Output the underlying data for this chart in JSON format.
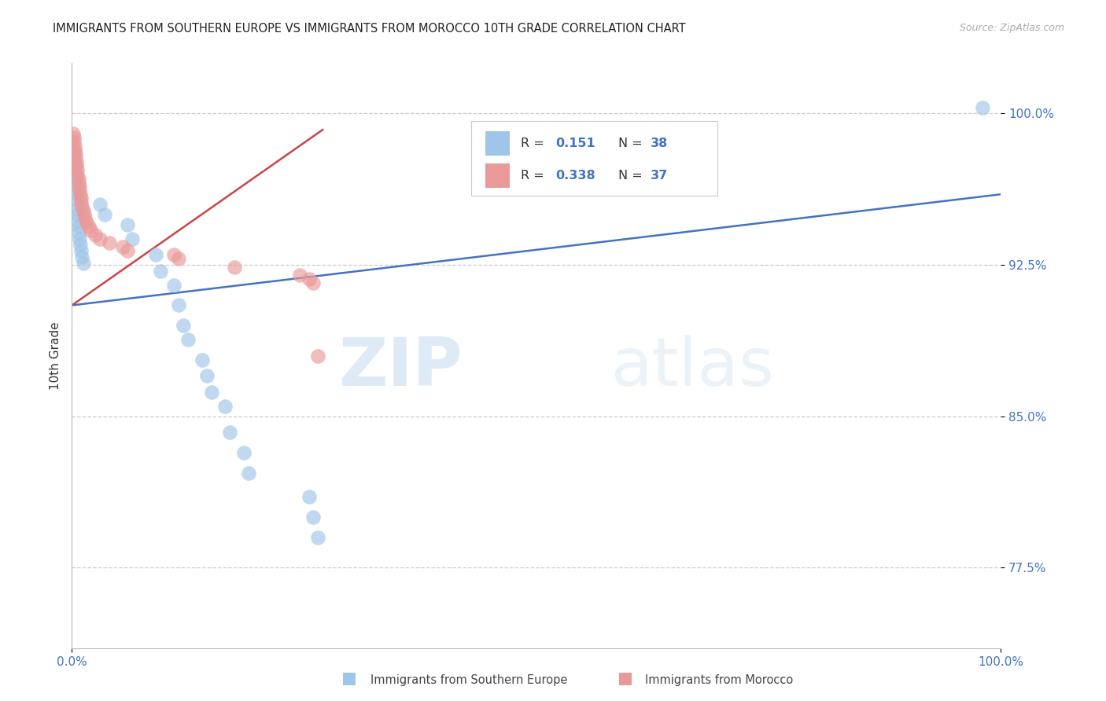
{
  "title": "IMMIGRANTS FROM SOUTHERN EUROPE VS IMMIGRANTS FROM MOROCCO 10TH GRADE CORRELATION CHART",
  "source": "Source: ZipAtlas.com",
  "ylabel": "10th Grade",
  "watermark_zip": "ZIP",
  "watermark_atlas": "atlas",
  "y_ticks": [
    0.775,
    0.85,
    0.925,
    1.0
  ],
  "y_tick_labels": [
    "77.5%",
    "85.0%",
    "92.5%",
    "100.0%"
  ],
  "x_lim": [
    0.0,
    1.0
  ],
  "y_lim": [
    0.735,
    1.025
  ],
  "legend_r1": "0.151",
  "legend_n1": "38",
  "legend_r2": "0.338",
  "legend_n2": "37",
  "color_blue": "#9fc5e8",
  "color_pink": "#ea9999",
  "color_line_blue": "#4472c4",
  "color_line_pink": "#cc4444",
  "label1": "Immigrants from Southern Europe",
  "label2": "Immigrants from Morocco",
  "blue_x": [
    0.001,
    0.002,
    0.003,
    0.003,
    0.004,
    0.004,
    0.005,
    0.005,
    0.006,
    0.006,
    0.007,
    0.007,
    0.008,
    0.009,
    0.01,
    0.011,
    0.012,
    0.03,
    0.035,
    0.06,
    0.065,
    0.09,
    0.095,
    0.11,
    0.115,
    0.12,
    0.125,
    0.14,
    0.145,
    0.15,
    0.165,
    0.17,
    0.185,
    0.19,
    0.255,
    0.26,
    0.265,
    0.98
  ],
  "blue_y": [
    0.98,
    0.975,
    0.97,
    0.967,
    0.964,
    0.96,
    0.957,
    0.953,
    0.95,
    0.947,
    0.944,
    0.941,
    0.938,
    0.935,
    0.932,
    0.929,
    0.926,
    0.955,
    0.95,
    0.945,
    0.938,
    0.93,
    0.922,
    0.915,
    0.905,
    0.895,
    0.888,
    0.878,
    0.87,
    0.862,
    0.855,
    0.842,
    0.832,
    0.822,
    0.81,
    0.8,
    0.79,
    1.003
  ],
  "pink_x": [
    0.001,
    0.002,
    0.002,
    0.003,
    0.003,
    0.004,
    0.004,
    0.005,
    0.005,
    0.006,
    0.006,
    0.007,
    0.007,
    0.008,
    0.008,
    0.009,
    0.01,
    0.01,
    0.011,
    0.012,
    0.013,
    0.014,
    0.016,
    0.018,
    0.02,
    0.025,
    0.03,
    0.04,
    0.055,
    0.06,
    0.11,
    0.115,
    0.175,
    0.245,
    0.255,
    0.26,
    0.265
  ],
  "pink_y": [
    0.99,
    0.988,
    0.986,
    0.984,
    0.982,
    0.98,
    0.978,
    0.976,
    0.974,
    0.972,
    0.97,
    0.968,
    0.966,
    0.964,
    0.962,
    0.96,
    0.958,
    0.956,
    0.954,
    0.952,
    0.95,
    0.948,
    0.946,
    0.944,
    0.942,
    0.94,
    0.938,
    0.936,
    0.934,
    0.932,
    0.93,
    0.928,
    0.924,
    0.92,
    0.918,
    0.916,
    0.88
  ],
  "blue_line_x": [
    0.0,
    1.0
  ],
  "blue_line_y": [
    0.905,
    0.96
  ],
  "pink_line_x": [
    0.0,
    0.27
  ],
  "pink_line_y": [
    0.905,
    0.992
  ]
}
